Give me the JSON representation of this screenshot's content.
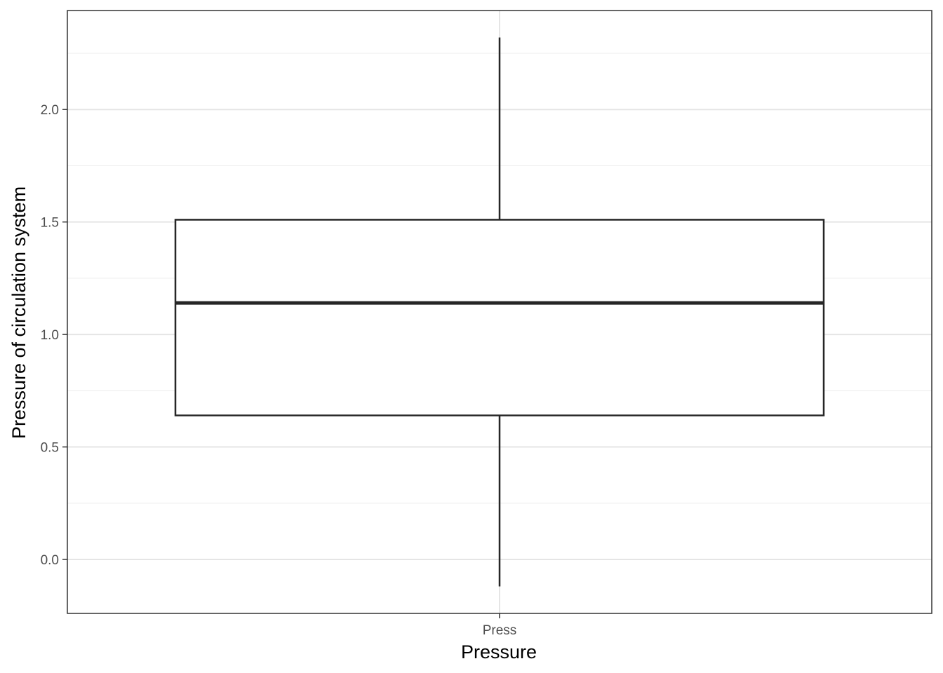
{
  "chart_data": {
    "type": "box",
    "xlabel": "Pressure",
    "ylabel": "Pressure of circulation system",
    "categories": [
      "Press"
    ],
    "boxes": [
      {
        "category": "Press",
        "lower_whisker": -0.12,
        "q1": 0.64,
        "median": 1.14,
        "q3": 1.51,
        "upper_whisker": 2.32
      }
    ],
    "ylim": [
      -0.24,
      2.44
    ],
    "yticks": [
      0.0,
      0.5,
      1.0,
      1.5,
      2.0
    ],
    "ytick_labels": [
      "0.0",
      "0.5",
      "1.0",
      "1.5",
      "2.0"
    ],
    "grid": true,
    "legend": "none",
    "colors": {
      "box_line": "#262626",
      "box_fill": "#ffffff",
      "grid": "#e5e5e5",
      "panel_border": "#333333",
      "tick_text": "#4d4d4d"
    }
  }
}
